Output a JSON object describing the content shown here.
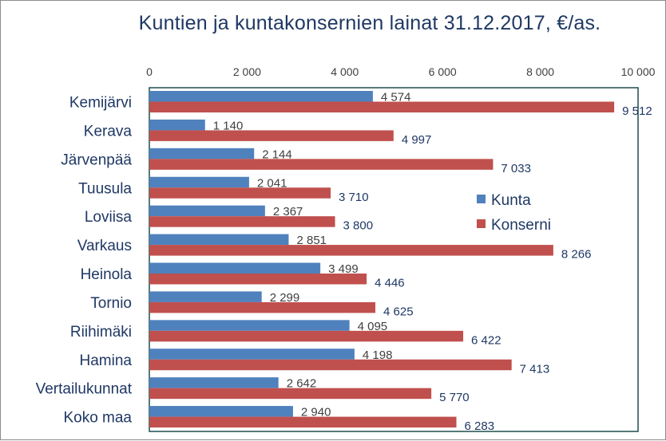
{
  "chart_data": {
    "type": "bar",
    "orientation": "horizontal",
    "title": "Kuntien ja kuntakonsernien  lainat 31.12.2017, €/as.",
    "categories": [
      "Kemijärvi",
      "Kerava",
      "Järvenpää",
      "Tuusula",
      "Loviisa",
      "Varkaus",
      "Heinola",
      "Tornio",
      "Riihimäki",
      "Hamina",
      "Vertailukunnat",
      "Koko maa"
    ],
    "series": [
      {
        "name": "Kunta",
        "color": "#4f81bd",
        "values": [
          4574,
          1140,
          2144,
          2041,
          2367,
          2851,
          3499,
          2299,
          4095,
          4198,
          2642,
          2940
        ],
        "labels": [
          "4 574",
          "1 140",
          "2 144",
          "2 041",
          "2 367",
          "2 851",
          "3 499",
          "2 299",
          "4 095",
          "4 198",
          "2 642",
          "2 940"
        ]
      },
      {
        "name": "Konserni",
        "color": "#c0504d",
        "values": [
          9512,
          4997,
          7033,
          3710,
          3800,
          8266,
          4446,
          4625,
          6422,
          7413,
          5770,
          6283
        ],
        "labels": [
          "9 512",
          "4 997",
          "7 033",
          "3 710",
          "3 800",
          "8 266",
          "4 446",
          "4 625",
          "6 422",
          "7 413",
          "5 770",
          "6 283"
        ]
      }
    ],
    "xlim": [
      0,
      10000
    ],
    "xticks": [
      0,
      2000,
      4000,
      6000,
      8000,
      10000
    ],
    "xtick_labels": [
      "0",
      "2 000",
      "4 000",
      "6 000",
      "8 000",
      "10 000"
    ],
    "axis_position": "top",
    "legend_position": "right-middle",
    "grid": false,
    "plot_border_color": "#1f4e4e"
  }
}
